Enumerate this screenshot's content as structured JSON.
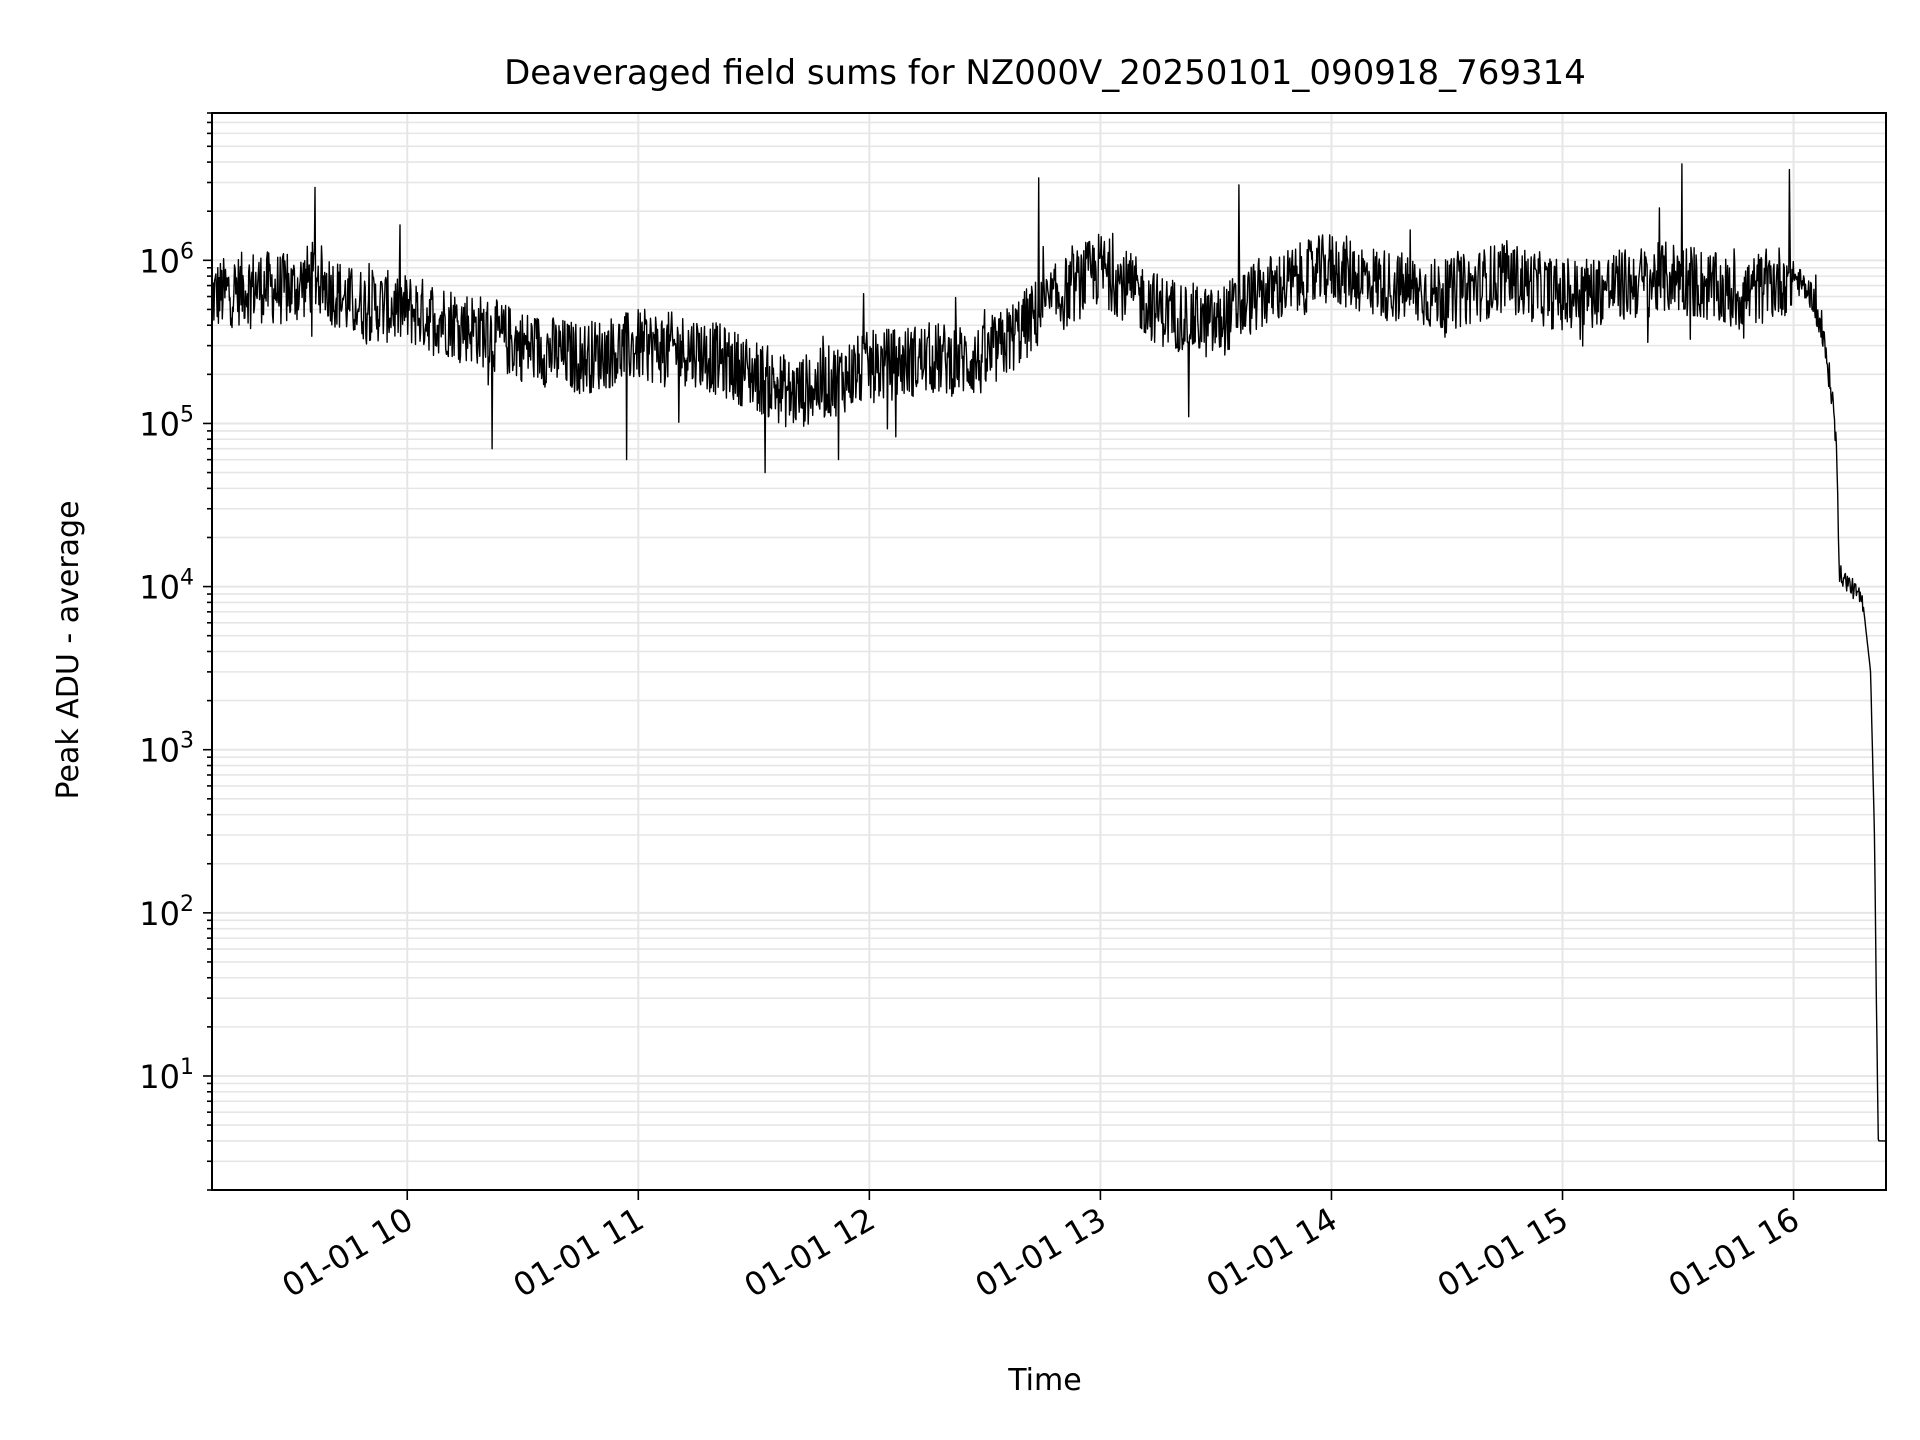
{
  "chart_data": {
    "type": "line",
    "title": "Deaveraged field sums for NZ000V_20250101_090918_769314",
    "xlabel": "Time",
    "ylabel": "Peak ADU - average",
    "y_scale": "log",
    "ylim": [
      2,
      8000000
    ],
    "xlim": [
      "2025-01-01 09:09:18",
      "2025-01-01 16:24:00"
    ],
    "grid": "on",
    "legend": "none",
    "line_color": "#000000",
    "grid_color": "#e6e6e6",
    "x_ticks": [
      {
        "label": "01-01 10",
        "time": "2025-01-01 10:00:00"
      },
      {
        "label": "01-01 11",
        "time": "2025-01-01 11:00:00"
      },
      {
        "label": "01-01 12",
        "time": "2025-01-01 12:00:00"
      },
      {
        "label": "01-01 13",
        "time": "2025-01-01 13:00:00"
      },
      {
        "label": "01-01 14",
        "time": "2025-01-01 14:00:00"
      },
      {
        "label": "01-01 15",
        "time": "2025-01-01 15:00:00"
      },
      {
        "label": "01-01 16",
        "time": "2025-01-01 16:00:00"
      }
    ],
    "y_ticks": [
      {
        "base": "10",
        "exp": "1",
        "value": 10
      },
      {
        "base": "10",
        "exp": "2",
        "value": 100
      },
      {
        "base": "10",
        "exp": "3",
        "value": 1000
      },
      {
        "base": "10",
        "exp": "4",
        "value": 10000
      },
      {
        "base": "10",
        "exp": "5",
        "value": 100000
      },
      {
        "base": "10",
        "exp": "6",
        "value": 1000000
      }
    ],
    "series": [
      {
        "x": [
          "2025-01-01 09:09:18",
          "2025-01-01 09:20:00",
          "2025-01-01 09:30:00",
          "2025-01-01 09:36:00",
          "2025-01-01 09:45:00",
          "2025-01-01 10:00:00",
          "2025-01-01 10:15:00",
          "2025-01-01 10:30:00",
          "2025-01-01 10:45:00",
          "2025-01-01 11:00:00",
          "2025-01-01 11:15:00",
          "2025-01-01 11:30:00",
          "2025-01-01 11:40:00",
          "2025-01-01 12:00:00",
          "2025-01-01 12:15:00",
          "2025-01-01 12:30:00",
          "2025-01-01 12:45:00",
          "2025-01-01 13:00:00",
          "2025-01-01 13:15:00",
          "2025-01-01 13:30:00",
          "2025-01-01 13:40:00",
          "2025-01-01 14:00:00",
          "2025-01-01 14:15:00",
          "2025-01-01 14:30:00",
          "2025-01-01 14:45:00",
          "2025-01-01 15:00:00",
          "2025-01-01 15:15:00",
          "2025-01-01 15:30:00",
          "2025-01-01 15:45:00",
          "2025-01-01 16:00:00",
          "2025-01-01 16:05:00",
          "2025-01-01 16:08:00",
          "2025-01-01 16:10:00",
          "2025-01-01 16:11:00",
          "2025-01-01 16:12:00",
          "2025-01-01 16:15:00",
          "2025-01-01 16:18:00",
          "2025-01-01 16:20:00",
          "2025-01-01 16:21:00",
          "2025-01-01 16:21:30",
          "2025-01-01 16:22:00",
          "2025-01-01 16:24:00"
        ],
        "y": [
          600000,
          700000,
          650000,
          800000,
          550000,
          500000,
          400000,
          300000,
          250000,
          300000,
          280000,
          200000,
          150000,
          220000,
          250000,
          240000,
          500000,
          900000,
          500000,
          400000,
          600000,
          900000,
          700000,
          600000,
          800000,
          600000,
          700000,
          800000,
          600000,
          800000,
          600000,
          300000,
          150000,
          80000,
          12000,
          10000,
          8000,
          3000,
          300,
          30,
          4,
          4
        ],
        "spikes": [
          {
            "time": "2025-01-01 09:36:00",
            "value": 2800000
          },
          {
            "time": "2025-01-01 12:44:00",
            "value": 3200000
          },
          {
            "time": "2025-01-01 13:36:00",
            "value": 2900000
          },
          {
            "time": "2025-01-01 15:31:00",
            "value": 3900000
          },
          {
            "time": "2025-01-01 15:59:00",
            "value": 3600000
          }
        ],
        "dips": [
          {
            "time": "2025-01-01 10:22:00",
            "value": 70000
          },
          {
            "time": "2025-01-01 10:57:00",
            "value": 60000
          },
          {
            "time": "2025-01-01 11:33:00",
            "value": 50000
          },
          {
            "time": "2025-01-01 11:52:00",
            "value": 60000
          },
          {
            "time": "2025-01-01 13:23:00",
            "value": 110000
          }
        ]
      }
    ]
  }
}
